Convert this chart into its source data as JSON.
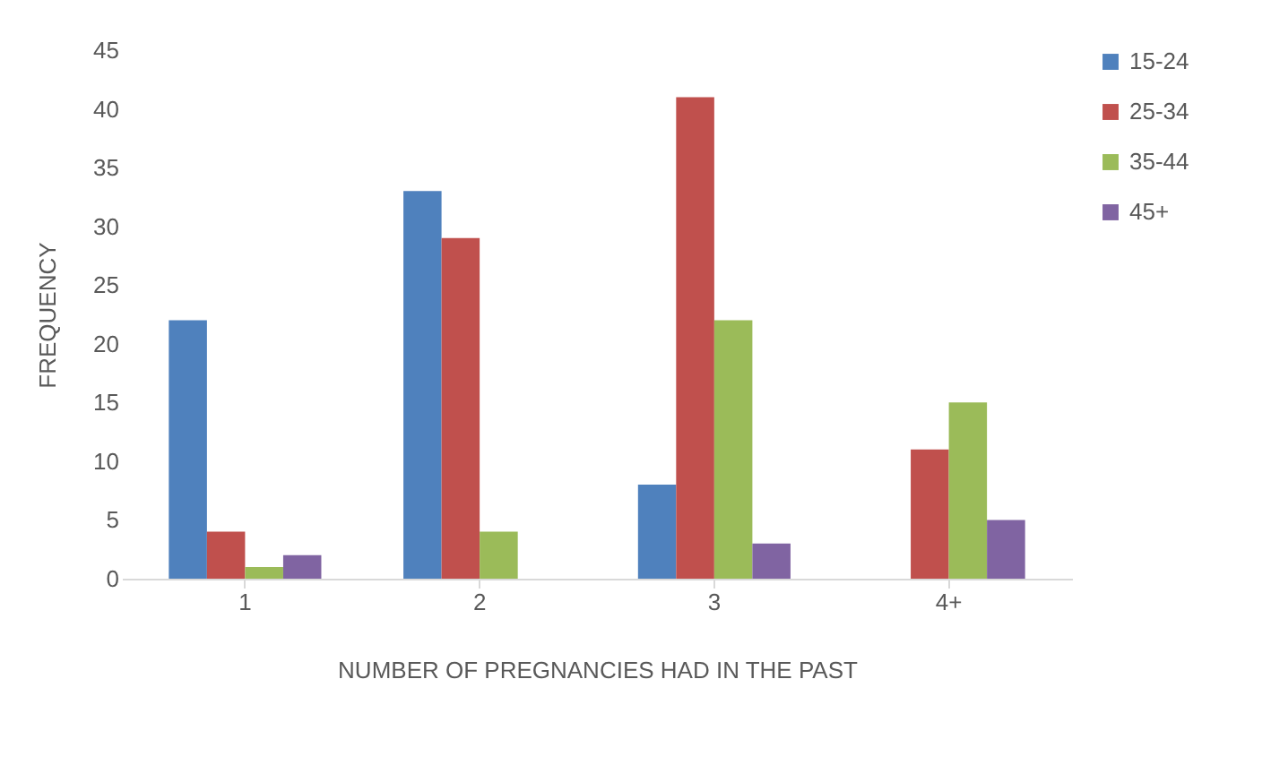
{
  "chart_data": {
    "type": "bar",
    "xlabel": "NUMBER OF PREGNANCIES HAD IN THE PAST",
    "ylabel": "FREQUENCY",
    "categories": [
      "1",
      "2",
      "3",
      "4+"
    ],
    "series": [
      {
        "name": "15-24",
        "color": "#4f81bd",
        "values": [
          22,
          33,
          8,
          0
        ]
      },
      {
        "name": "25-34",
        "color": "#c0504d",
        "values": [
          4,
          29,
          41,
          11
        ]
      },
      {
        "name": "35-44",
        "color": "#9bbb59",
        "values": [
          1,
          4,
          22,
          15
        ]
      },
      {
        "name": "45+",
        "color": "#8064a2",
        "values": [
          2,
          0,
          3,
          5
        ]
      }
    ],
    "ylim": [
      0,
      45
    ],
    "yticks": [
      0,
      5,
      10,
      15,
      20,
      25,
      30,
      35,
      40,
      45
    ],
    "grid": false,
    "legend": "right"
  }
}
